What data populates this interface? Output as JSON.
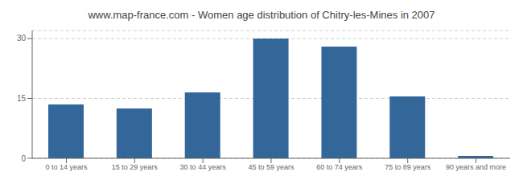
{
  "chart_data": {
    "type": "bar",
    "title": "www.map-france.com - Women age distribution of Chitry-les-Mines in 2007",
    "categories": [
      "0 to 14 years",
      "15 to 29 years",
      "30 to 44 years",
      "45 to 59 years",
      "60 to 74 years",
      "75 to 89 years",
      "90 years and more"
    ],
    "values": [
      13.5,
      12.5,
      16.5,
      30.0,
      28.0,
      15.5,
      0.6
    ],
    "color": "#336699",
    "ylim": [
      0,
      32
    ],
    "yticks": [
      0,
      15,
      30
    ],
    "grid": true
  }
}
